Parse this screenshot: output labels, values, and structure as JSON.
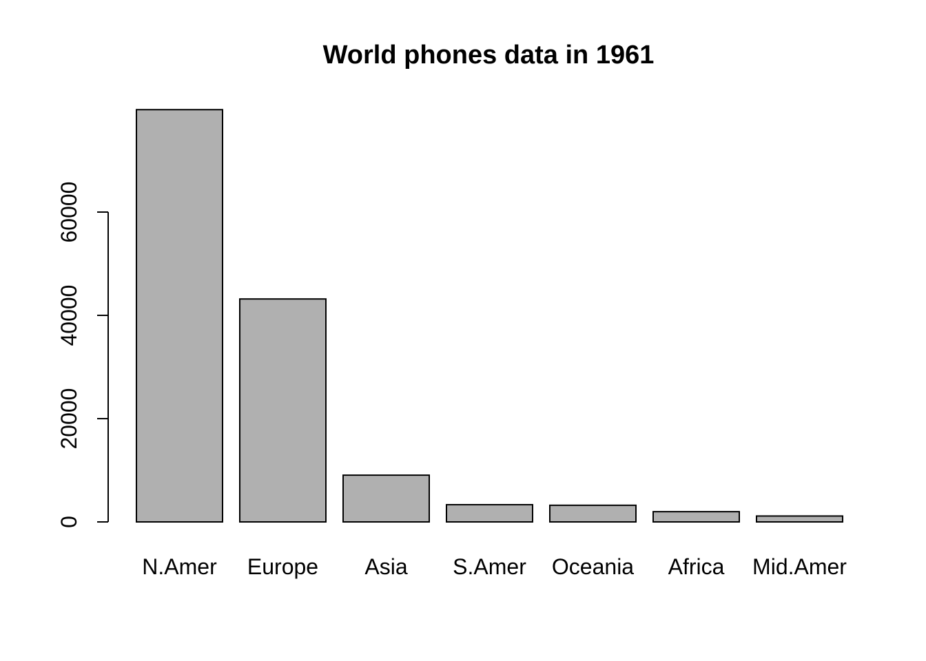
{
  "chart_data": {
    "type": "bar",
    "title": "World phones data in 1961",
    "xlabel": "",
    "ylabel": "",
    "categories": [
      "N.Amer",
      "Europe",
      "Asia",
      "S.Amer",
      "Oceania",
      "Africa",
      "Mid.Amer"
    ],
    "values": [
      79831,
      43173,
      9053,
      3338,
      3224,
      1984,
      1143
    ],
    "ylim": [
      0,
      80000
    ],
    "yticks": [
      0,
      20000,
      40000,
      60000
    ],
    "ytick_labels": [
      "0",
      "20000",
      "40000",
      "60000"
    ],
    "grid": false,
    "legend": "none",
    "bar_color": "#b0b0b0",
    "edge_color": "#000000"
  }
}
